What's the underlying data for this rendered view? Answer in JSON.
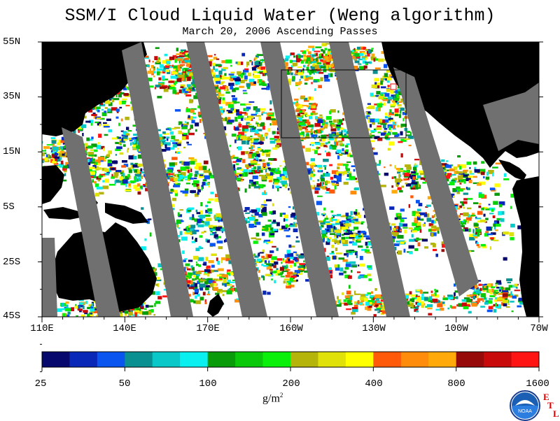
{
  "title": "SSM/I Cloud Liquid Water (Weng algorithm)",
  "subtitle": "March 20, 2006  Ascending Passes",
  "lat_labels": [
    "55N",
    "35N",
    "15N",
    "5S",
    "25S",
    "45S"
  ],
  "lon_labels": [
    "110E",
    "140E",
    "170E",
    "160W",
    "130W",
    "100W",
    "70W"
  ],
  "colorbar": {
    "tick_labels": [
      "25",
      "50",
      "100",
      "200",
      "400",
      "800",
      "1600"
    ],
    "unit_base": "g/m",
    "unit_exp": "2",
    "colors": [
      "#06086e",
      "#0a28b8",
      "#0a55f0",
      "#0a9090",
      "#0ac8c8",
      "#0af0f0",
      "#0a9b0a",
      "#0ac80a",
      "#0af00a",
      "#b4b40a",
      "#e1e10a",
      "#ffff00",
      "#ff5a0a",
      "#ff8c0a",
      "#ffaa0a",
      "#960a0a",
      "#c80a0a",
      "#ff1414"
    ]
  },
  "logo": {
    "icon": "noaa-logo-icon",
    "text": "NOAA"
  },
  "etl": {
    "e": "E",
    "t": "T",
    "l": "L"
  }
}
